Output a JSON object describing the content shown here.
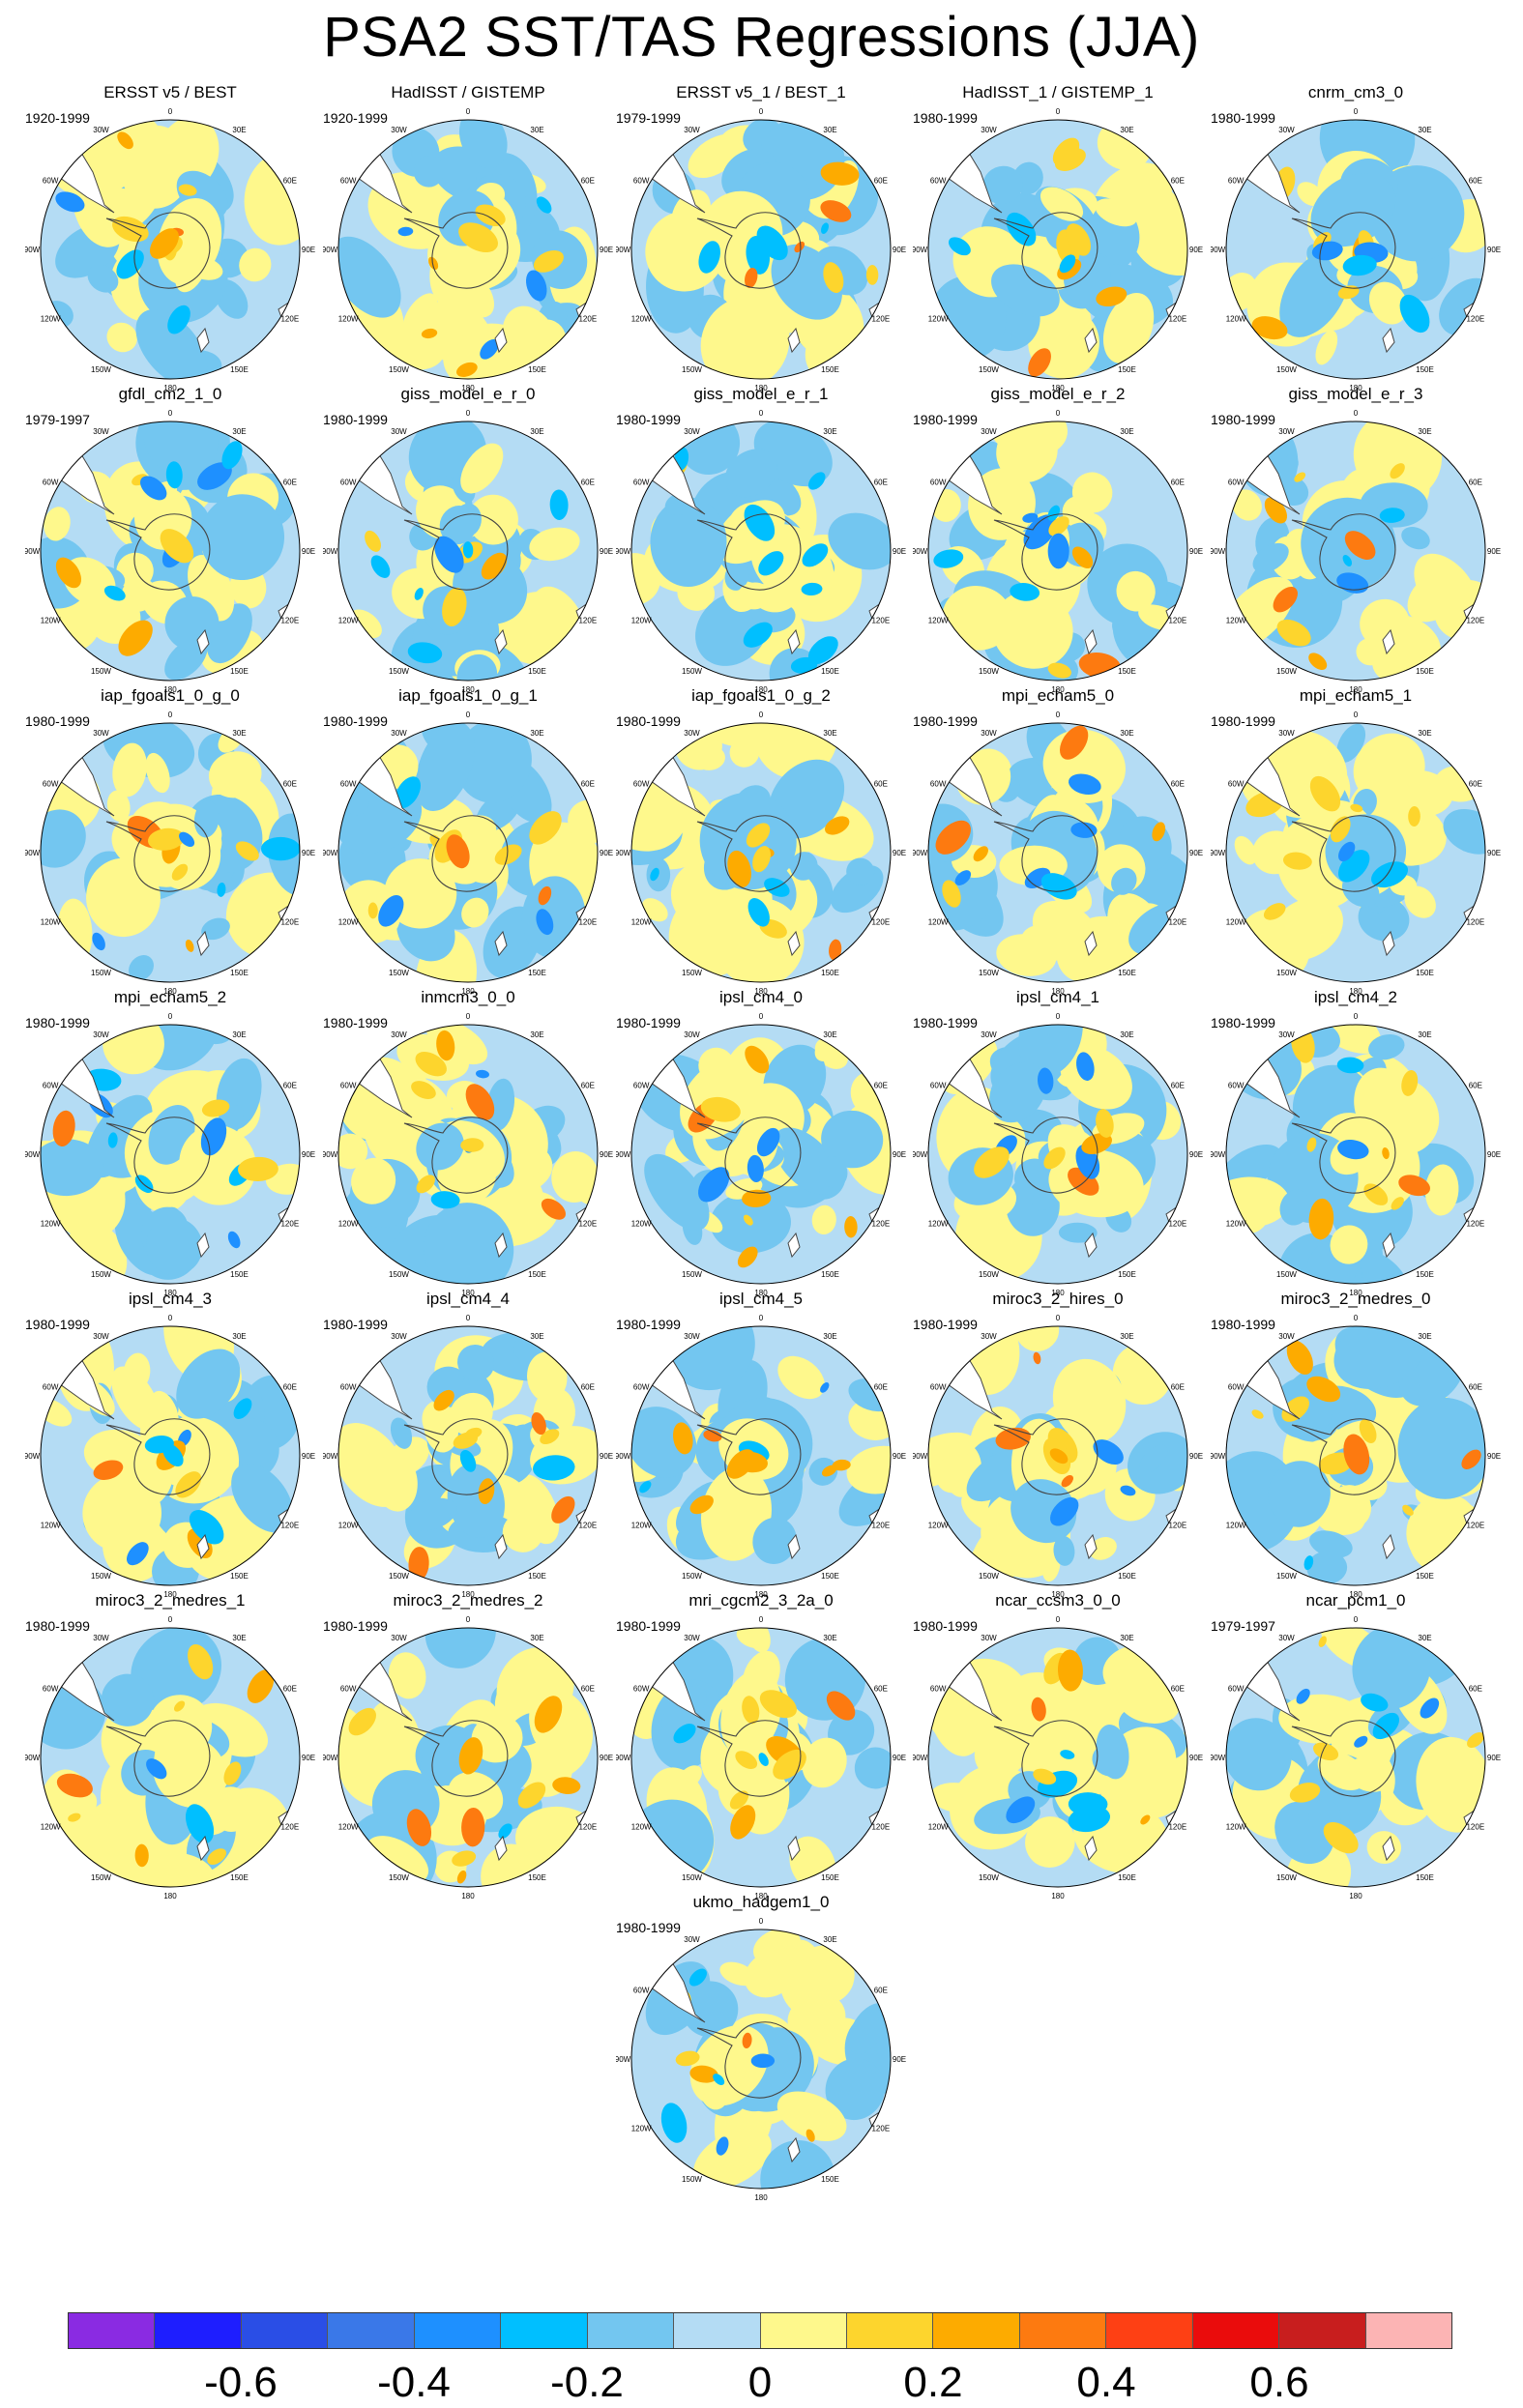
{
  "title": "PSA2 SST/TAS Regressions (JJA)",
  "map_labels": {
    "top": "0",
    "top_right": "30E",
    "right_upper": "60E",
    "right": "90E",
    "right_lower": "120E",
    "bottom_right": "150E",
    "bottom": "180",
    "bottom_left": "150W",
    "left_lower": "120W",
    "left": "90W",
    "left_upper": "60W",
    "top_left": "30W"
  },
  "panels": [
    {
      "name": "ERSST v5 / BEST",
      "period": "1920-1999"
    },
    {
      "name": "HadISST / GISTEMP",
      "period": "1920-1999"
    },
    {
      "name": "ERSST v5_1 / BEST_1",
      "period": "1979-1999"
    },
    {
      "name": "HadISST_1 / GISTEMP_1",
      "period": "1980-1999"
    },
    {
      "name": "cnrm_cm3_0",
      "period": "1980-1999"
    },
    {
      "name": "gfdl_cm2_1_0",
      "period": "1979-1997"
    },
    {
      "name": "giss_model_e_r_0",
      "period": "1980-1999"
    },
    {
      "name": "giss_model_e_r_1",
      "period": "1980-1999"
    },
    {
      "name": "giss_model_e_r_2",
      "period": "1980-1999"
    },
    {
      "name": "giss_model_e_r_3",
      "period": "1980-1999"
    },
    {
      "name": "iap_fgoals1_0_g_0",
      "period": "1980-1999"
    },
    {
      "name": "iap_fgoals1_0_g_1",
      "period": "1980-1999"
    },
    {
      "name": "iap_fgoals1_0_g_2",
      "period": "1980-1999"
    },
    {
      "name": "mpi_echam5_0",
      "period": "1980-1999"
    },
    {
      "name": "mpi_echam5_1",
      "period": "1980-1999"
    },
    {
      "name": "mpi_echam5_2",
      "period": "1980-1999"
    },
    {
      "name": "inmcm3_0_0",
      "period": "1980-1999"
    },
    {
      "name": "ipsl_cm4_0",
      "period": "1980-1999"
    },
    {
      "name": "ipsl_cm4_1",
      "period": "1980-1999"
    },
    {
      "name": "ipsl_cm4_2",
      "period": "1980-1999"
    },
    {
      "name": "ipsl_cm4_3",
      "period": "1980-1999"
    },
    {
      "name": "ipsl_cm4_4",
      "period": "1980-1999"
    },
    {
      "name": "ipsl_cm4_5",
      "period": "1980-1999"
    },
    {
      "name": "miroc3_2_hires_0",
      "period": "1980-1999"
    },
    {
      "name": "miroc3_2_medres_0",
      "period": "1980-1999"
    },
    {
      "name": "miroc3_2_medres_1",
      "period": "1980-1999"
    },
    {
      "name": "miroc3_2_medres_2",
      "period": "1980-1999"
    },
    {
      "name": "mri_cgcm2_3_2a_0",
      "period": "1980-1999"
    },
    {
      "name": "ncar_ccsm3_0_0",
      "period": "1980-1999"
    },
    {
      "name": "ncar_pcm1_0",
      "period": "1979-1997"
    },
    {
      "name": "ukmo_hadgem1_0",
      "period": "1980-1999"
    }
  ],
  "colorbar": {
    "colors": [
      "#8a2be2",
      "#1e1eff",
      "#2a4ee6",
      "#3a78e8",
      "#1e90ff",
      "#00bfff",
      "#73c6f0",
      "#b4dcf4",
      "#fef88c",
      "#fdd52d",
      "#fdab00",
      "#fd7a10",
      "#fe4014",
      "#ea0c0c",
      "#c81e1e",
      "#fcb4b4"
    ],
    "labels": [
      "-0.6",
      "-0.4",
      "-0.2",
      "0",
      "0.2",
      "0.4",
      "0.6"
    ]
  }
}
